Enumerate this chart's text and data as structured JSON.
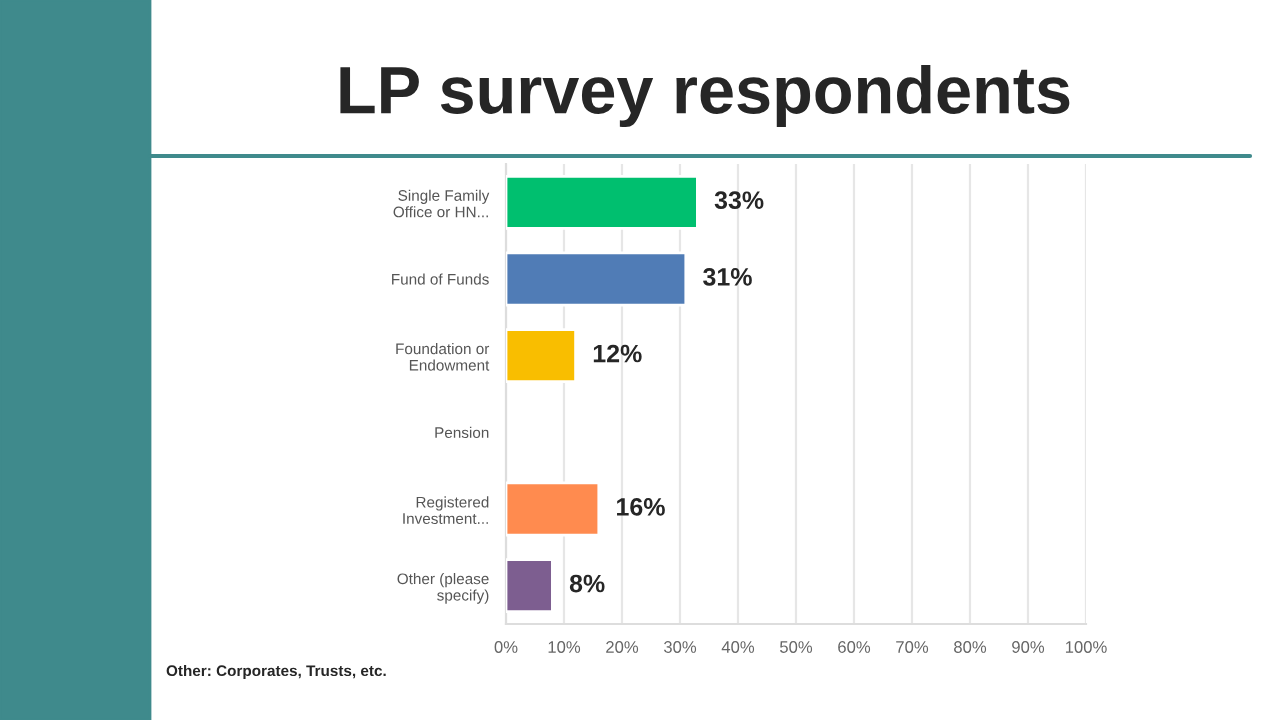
{
  "chart_data": {
    "type": "bar",
    "orientation": "horizontal",
    "title": "LP survey respondents",
    "categories": [
      "Single Family Office or HN...",
      "Fund of Funds",
      "Foundation or Endowment",
      "Pension",
      "Registered Investment...",
      "Other (please specify)"
    ],
    "values": [
      33,
      31,
      12,
      null,
      16,
      8
    ],
    "colors": [
      "#00bf6f",
      "#507cb6",
      "#f9be00",
      null,
      "#ff8b4f",
      "#7d5e90"
    ],
    "value_labels": [
      "33%",
      "31%",
      "12%",
      null,
      "16%",
      "8%"
    ],
    "xlim": [
      0,
      100
    ],
    "xticks": [
      {
        "value": 0,
        "label": "0%"
      },
      {
        "value": 10,
        "label": "10%"
      },
      {
        "value": 20,
        "label": "20%"
      },
      {
        "value": 30,
        "label": "30%"
      },
      {
        "value": 40,
        "label": "40%"
      },
      {
        "value": 50,
        "label": "50%"
      },
      {
        "value": 60,
        "label": "60%"
      },
      {
        "value": 70,
        "label": "70%"
      },
      {
        "value": 80,
        "label": "80%"
      },
      {
        "value": 90,
        "label": "90%"
      },
      {
        "value": 100,
        "label": "100%"
      }
    ],
    "grid": "x",
    "annotations": [
      "Other: Corporates, Trusts, etc."
    ]
  }
}
